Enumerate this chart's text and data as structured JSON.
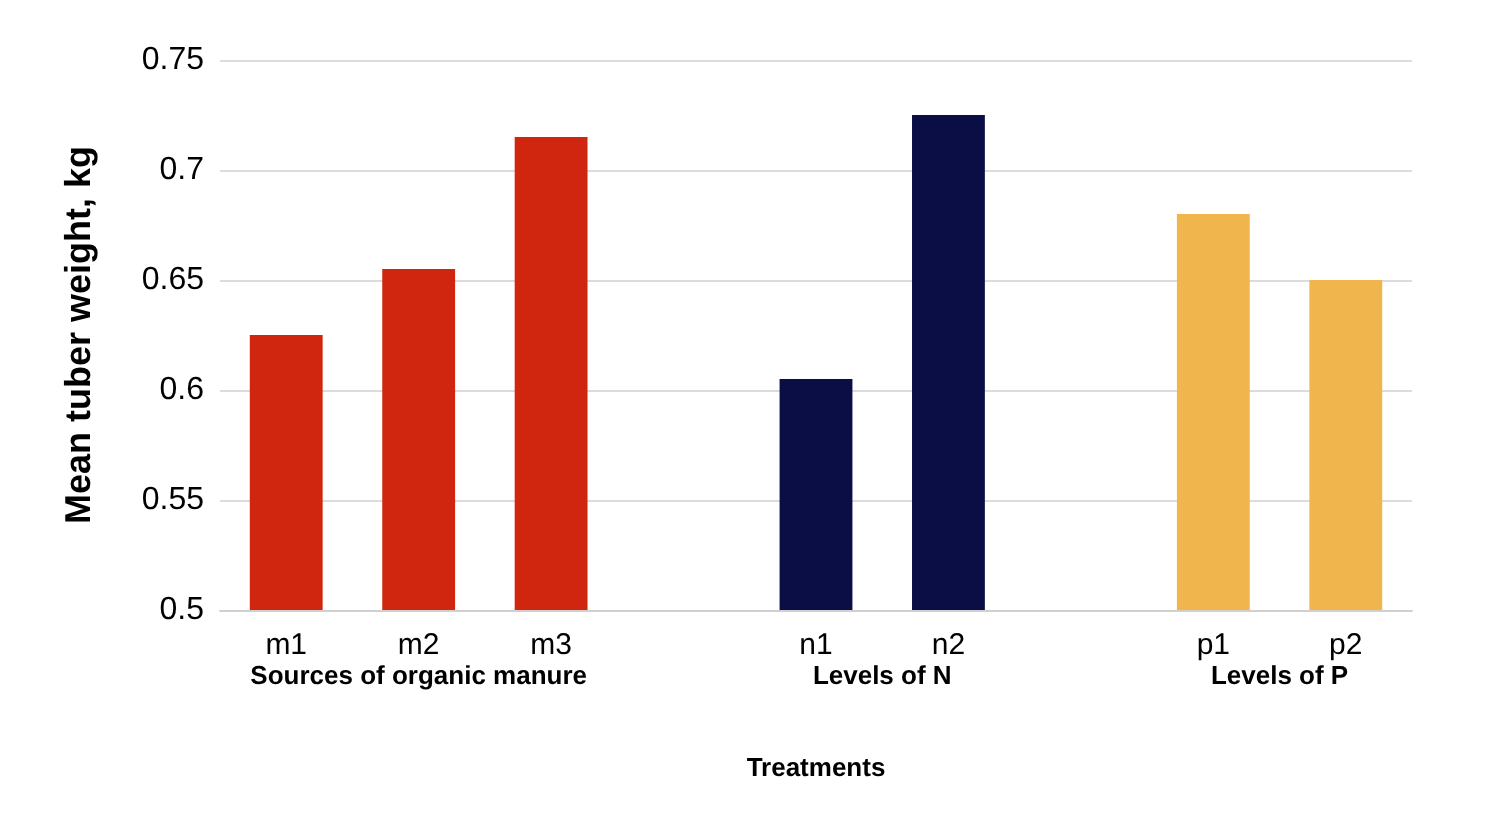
{
  "chart_data": {
    "type": "bar",
    "xlabel": "Treatments",
    "ylabel": "Mean tuber weight, kg",
    "categories": [
      "m1",
      "m2",
      "m3",
      null,
      "n1",
      "n2",
      null,
      "p1",
      "p2"
    ],
    "values": [
      0.625,
      0.655,
      0.715,
      null,
      0.605,
      0.725,
      null,
      0.68,
      0.65
    ],
    "colors": [
      "#d0260f",
      "#d0260f",
      "#d0260f",
      null,
      "#0a0e45",
      "#0a0e45",
      null,
      "#f0b54c",
      "#f0b54c"
    ],
    "ylim": [
      0.5,
      0.75
    ],
    "yticks": [
      0.5,
      0.55,
      0.6,
      0.65,
      0.7,
      0.75
    ],
    "grid": "y",
    "annotations": [
      "Sources of organic manure",
      "Levels of N",
      "Levels of P"
    ]
  }
}
